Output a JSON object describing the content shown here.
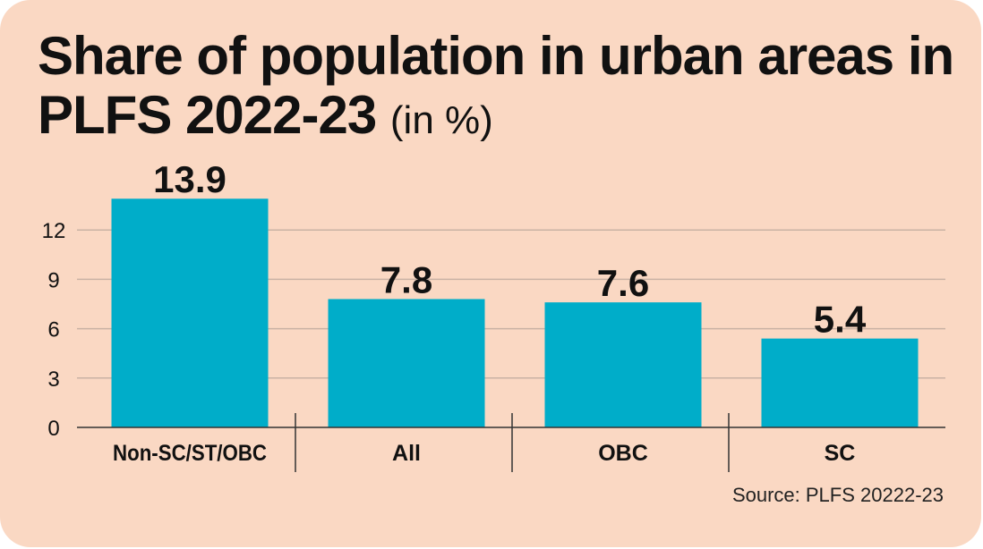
{
  "header": {
    "title": "Share of population in urban areas in PLFS 2022-23",
    "unit": "(in %)"
  },
  "source": "Source: PLFS 20222-23",
  "colors": {
    "background": "#fad8c3",
    "bar": "#00adc9",
    "grid": "#c9b2a4",
    "text": "#111111"
  },
  "chart_data": {
    "type": "bar",
    "title": "Share of population in urban areas in PLFS 2022-23 (in %)",
    "categories": [
      "Non-SC/ST/OBC",
      "All",
      "OBC",
      "SC"
    ],
    "values": [
      13.9,
      7.8,
      7.6,
      5.4
    ],
    "data_labels": [
      "13.9",
      "7.8",
      "7.6",
      "5.4"
    ],
    "y_ticks": [
      0,
      3,
      6,
      9,
      12
    ],
    "ylim": [
      0,
      15
    ],
    "grid": true,
    "legend": "none"
  }
}
